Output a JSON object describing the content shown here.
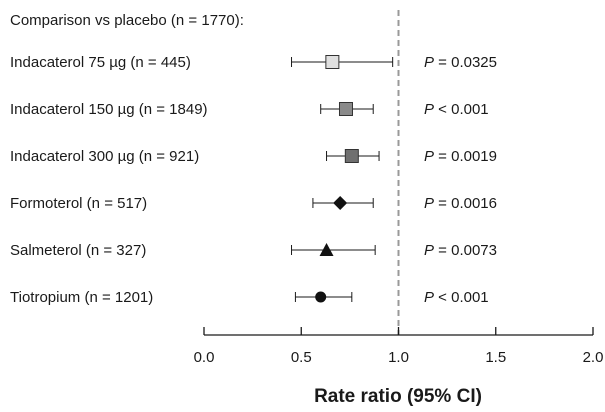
{
  "chart_data": {
    "type": "scatter",
    "subtitle": "Comparison vs placebo (n = 1770):",
    "xlabel": "Rate ratio (95% CI)",
    "xlim": [
      0.0,
      2.0
    ],
    "xticks": [
      "0.0",
      "0.5",
      "1.0",
      "1.5",
      "2.0"
    ],
    "reference_line": 1.0,
    "rows": [
      {
        "label": "Indacaterol 75 µg (n = 445)",
        "estimate": 0.66,
        "lower": 0.45,
        "upper": 0.97,
        "marker": "square",
        "color": "#e0e0e0",
        "p_label": "P",
        "p_rest": " = 0.0325"
      },
      {
        "label": "Indacaterol 150 µg (n = 1849)",
        "estimate": 0.73,
        "lower": 0.6,
        "upper": 0.87,
        "marker": "square",
        "color": "#8a8a8a",
        "p_label": "P",
        "p_rest": " < 0.001"
      },
      {
        "label": "Indacaterol 300 µg (n = 921)",
        "estimate": 0.76,
        "lower": 0.63,
        "upper": 0.9,
        "marker": "square",
        "color": "#6f6f6f",
        "p_label": "P",
        "p_rest": " = 0.0019"
      },
      {
        "label": "Formoterol (n = 517)",
        "estimate": 0.7,
        "lower": 0.56,
        "upper": 0.87,
        "marker": "diamond",
        "color": "#111111",
        "p_label": "P",
        "p_rest": " = 0.0016"
      },
      {
        "label": "Salmeterol (n = 327)",
        "estimate": 0.63,
        "lower": 0.45,
        "upper": 0.88,
        "marker": "triangle",
        "color": "#111111",
        "p_label": "P",
        "p_rest": " = 0.0073"
      },
      {
        "label": "Tiotropium (n = 1201)",
        "estimate": 0.6,
        "lower": 0.47,
        "upper": 0.76,
        "marker": "circle",
        "color": "#111111",
        "p_label": "P",
        "p_rest": " < 0.001"
      }
    ]
  }
}
